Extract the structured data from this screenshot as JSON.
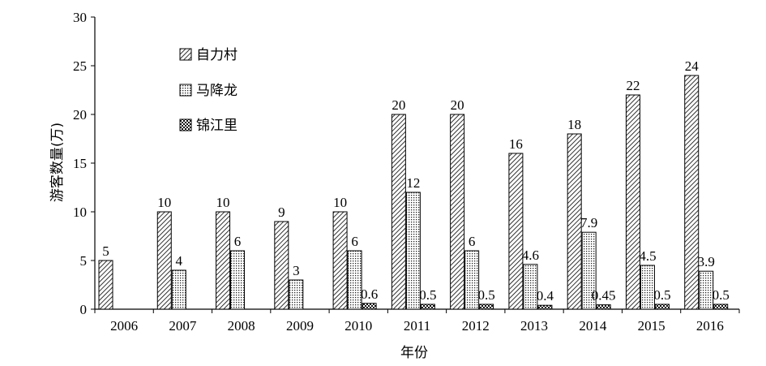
{
  "chart_data": {
    "type": "bar",
    "xlabel": "年份",
    "ylabel": "游客数量(万)",
    "ylim": [
      0,
      30
    ],
    "yticks": [
      "0",
      "5",
      "10",
      "15",
      "20",
      "25",
      "30"
    ],
    "categories": [
      "2006",
      "2007",
      "2008",
      "2009",
      "2010",
      "2011",
      "2012",
      "2013",
      "2014",
      "2015",
      "2016"
    ],
    "series": [
      {
        "name": "自力村",
        "pattern": "diagonal-hatch",
        "values": [
          5,
          10,
          10,
          9,
          10,
          20,
          20,
          16,
          18,
          22,
          24
        ],
        "labels": [
          "5",
          "10",
          "10",
          "9",
          "10",
          "20",
          "20",
          "16",
          "18",
          "22",
          "24"
        ]
      },
      {
        "name": "马降龙",
        "pattern": "dots",
        "values": [
          null,
          4,
          6,
          3,
          6,
          12,
          6,
          4.6,
          7.9,
          4.5,
          3.9
        ],
        "labels": [
          "",
          "4",
          "6",
          "3",
          "6",
          "12",
          "6",
          "4.6",
          "7.9",
          "4.5",
          "3.9"
        ]
      },
      {
        "name": "锦江里",
        "pattern": "checker",
        "values": [
          null,
          null,
          null,
          null,
          0.6,
          0.5,
          0.5,
          0.4,
          0.45,
          0.5,
          0.5
        ],
        "labels": [
          "",
          "",
          "",
          "",
          "0.6",
          "0.5",
          "0.5",
          "0.4",
          "0.45",
          "0.5",
          "0.5"
        ]
      }
    ],
    "legend_position": "top-left",
    "grid": false
  }
}
